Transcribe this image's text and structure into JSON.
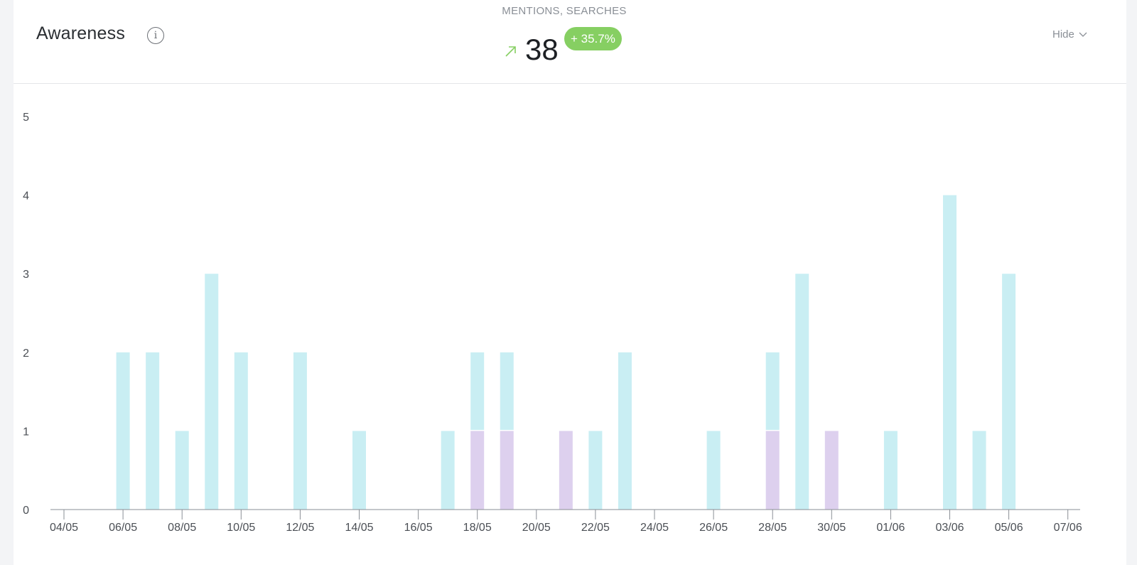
{
  "widget": {
    "title": "Awareness",
    "info_icon": "info-icon",
    "metric_label": "MENTIONS, SEARCHES",
    "metric_value": "38",
    "change_badge": "+ 35.7%",
    "trend_icon": "arrow-up-right-icon",
    "hide_label": "Hide",
    "hide_icon": "chevron-down-icon"
  },
  "colors": {
    "series_1": "#c9eef3",
    "series_2": "#ddd0ee",
    "badge": "#86cf62",
    "trend": "#86cf62"
  },
  "chart_data": {
    "type": "bar",
    "stacked": true,
    "x": [
      "04/05",
      "05/05",
      "06/05",
      "07/05",
      "08/05",
      "09/05",
      "10/05",
      "11/05",
      "12/05",
      "13/05",
      "14/05",
      "15/05",
      "16/05",
      "17/05",
      "18/05",
      "19/05",
      "20/05",
      "21/05",
      "22/05",
      "23/05",
      "24/05",
      "25/05",
      "26/05",
      "27/05",
      "28/05",
      "29/05",
      "30/05",
      "31/05",
      "01/06",
      "02/06",
      "03/06",
      "04/06",
      "05/06",
      "06/06",
      "07/06"
    ],
    "x_tick_labels": [
      "04/05",
      "06/05",
      "08/05",
      "10/05",
      "12/05",
      "14/05",
      "16/05",
      "18/05",
      "20/05",
      "22/05",
      "24/05",
      "26/05",
      "28/05",
      "30/05",
      "01/06",
      "03/06",
      "05/06",
      "07/06"
    ],
    "series": [
      {
        "color": "#ddd0ee",
        "values": [
          0,
          0,
          0,
          0,
          0,
          0,
          0,
          0,
          0,
          0,
          0,
          0,
          0,
          0,
          1,
          1,
          0,
          1,
          0,
          0,
          0,
          0,
          0,
          0,
          1,
          0,
          1,
          0,
          0,
          0,
          0,
          0,
          0,
          0,
          0
        ]
      },
      {
        "color": "#c9eef3",
        "values": [
          0,
          0,
          2,
          2,
          1,
          3,
          2,
          0,
          2,
          0,
          1,
          0,
          0,
          1,
          1,
          1,
          0,
          0,
          1,
          2,
          0,
          0,
          1,
          0,
          1,
          3,
          0,
          0,
          1,
          0,
          4,
          1,
          3,
          0,
          0
        ]
      }
    ],
    "ylim": [
      0,
      5
    ],
    "y_ticks": [
      0,
      1,
      2,
      3,
      4,
      5
    ],
    "grid": false,
    "legend": "none"
  }
}
